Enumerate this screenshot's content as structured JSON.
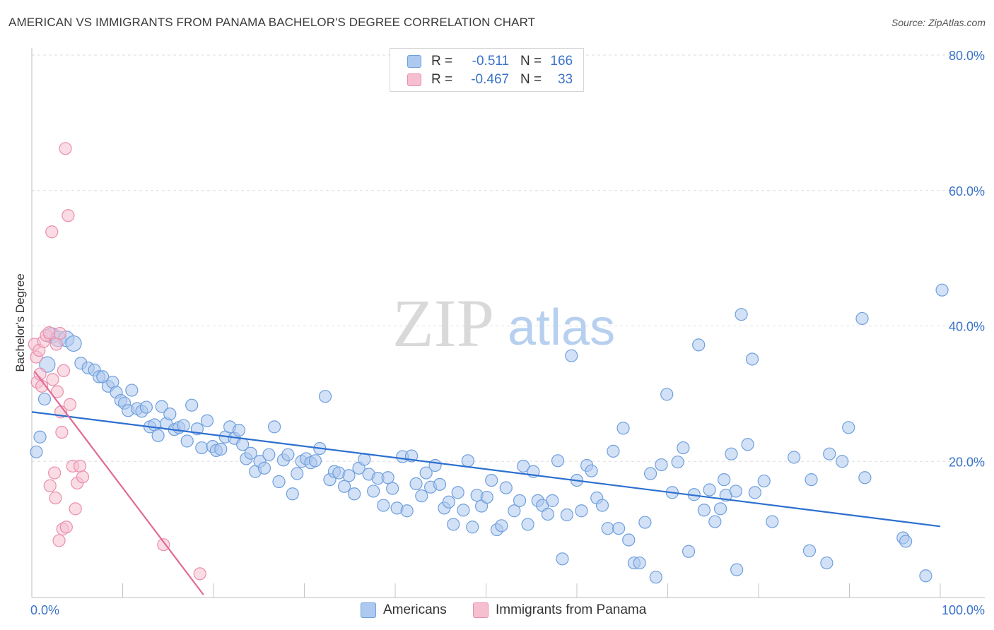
{
  "header": {
    "title": "AMERICAN VS IMMIGRANTS FROM PANAMA BACHELOR'S DEGREE CORRELATION CHART",
    "source": "Source: ZipAtlas.com"
  },
  "watermark": {
    "zip": "ZIP",
    "atlas": "atlas"
  },
  "legend": {
    "rows": [
      {
        "r_label": "R =",
        "r_value": "-0.511",
        "n_label": "N =",
        "n_value": "166"
      },
      {
        "r_label": "R =",
        "r_value": "-0.467",
        "n_label": "N =",
        "n_value": "33"
      }
    ]
  },
  "bottom_legend": {
    "americans": "Americans",
    "panama": "Immigrants from Panama"
  },
  "colors": {
    "blue_fill": "#adc9ef",
    "blue_stroke": "#6f9fdd",
    "blue_line": "#2c6fd0",
    "pink_fill": "#f6bfd0",
    "pink_stroke": "#ea8eab",
    "pink_line": "#e06a97",
    "tick_label": "#3a73c8",
    "grid": "#dedede"
  },
  "chart_data": {
    "type": "scatter",
    "title": "AMERICAN VS IMMIGRANTS FROM PANAMA BACHELOR'S DEGREE CORRELATION CHART",
    "xlabel": "",
    "ylabel": "Bachelor's Degree",
    "xlim": [
      0,
      100
    ],
    "ylim": [
      0,
      80
    ],
    "x_tick_labels": [
      "0.0%",
      "100.0%"
    ],
    "y_ticks": [
      20,
      40,
      60,
      80
    ],
    "y_tick_labels": [
      "20.0%",
      "40.0%",
      "60.0%",
      "80.0%"
    ],
    "series": [
      {
        "name": "Americans",
        "r": -0.511,
        "n": 166,
        "trend": {
          "x": [
            0,
            100
          ],
          "y": [
            27.3,
            10.4
          ]
        },
        "points": [
          [
            0.5,
            21.4
          ],
          [
            0.9,
            23.6
          ],
          [
            1.4,
            29.2
          ],
          [
            1.7,
            34.3
          ],
          [
            2.2,
            38.6
          ],
          [
            2.9,
            38.1
          ],
          [
            3.8,
            38.1
          ],
          [
            4.6,
            37.4
          ],
          [
            5.4,
            34.5
          ],
          [
            6.2,
            33.8
          ],
          [
            6.9,
            33.5
          ],
          [
            7.4,
            32.5
          ],
          [
            7.8,
            32.5
          ],
          [
            8.4,
            31.1
          ],
          [
            8.9,
            31.7
          ],
          [
            9.3,
            30.2
          ],
          [
            9.8,
            29.0
          ],
          [
            10.2,
            28.6
          ],
          [
            10.6,
            27.5
          ],
          [
            11.0,
            30.5
          ],
          [
            11.6,
            27.8
          ],
          [
            12.1,
            27.4
          ],
          [
            12.6,
            28.0
          ],
          [
            13.0,
            25.1
          ],
          [
            13.5,
            25.4
          ],
          [
            13.9,
            23.8
          ],
          [
            14.3,
            28.1
          ],
          [
            14.8,
            25.6
          ],
          [
            15.2,
            27.0
          ],
          [
            15.7,
            24.7
          ],
          [
            16.2,
            25.0
          ],
          [
            16.7,
            25.3
          ],
          [
            17.1,
            23.0
          ],
          [
            17.6,
            28.3
          ],
          [
            18.2,
            24.8
          ],
          [
            18.7,
            22.0
          ],
          [
            19.3,
            26.0
          ],
          [
            19.9,
            22.2
          ],
          [
            20.3,
            21.6
          ],
          [
            20.8,
            21.8
          ],
          [
            21.3,
            23.6
          ],
          [
            21.8,
            25.1
          ],
          [
            22.3,
            23.4
          ],
          [
            22.8,
            24.6
          ],
          [
            23.2,
            22.5
          ],
          [
            23.6,
            20.4
          ],
          [
            24.1,
            21.2
          ],
          [
            24.6,
            18.5
          ],
          [
            25.1,
            20.0
          ],
          [
            25.6,
            19.0
          ],
          [
            26.1,
            21.0
          ],
          [
            26.7,
            25.1
          ],
          [
            27.2,
            17.0
          ],
          [
            27.7,
            20.2
          ],
          [
            28.2,
            21.0
          ],
          [
            28.7,
            15.2
          ],
          [
            29.2,
            18.2
          ],
          [
            29.7,
            20.0
          ],
          [
            30.2,
            20.4
          ],
          [
            30.7,
            19.8
          ],
          [
            31.2,
            20.1
          ],
          [
            31.7,
            21.9
          ],
          [
            32.3,
            29.6
          ],
          [
            32.8,
            17.3
          ],
          [
            33.3,
            18.5
          ],
          [
            33.8,
            18.3
          ],
          [
            34.4,
            16.3
          ],
          [
            34.9,
            17.9
          ],
          [
            35.5,
            15.2
          ],
          [
            36.0,
            19.0
          ],
          [
            36.6,
            20.3
          ],
          [
            37.1,
            18.1
          ],
          [
            37.6,
            15.6
          ],
          [
            38.1,
            17.5
          ],
          [
            38.7,
            13.5
          ],
          [
            39.2,
            17.6
          ],
          [
            39.7,
            16.0
          ],
          [
            40.2,
            13.1
          ],
          [
            40.8,
            20.7
          ],
          [
            41.3,
            12.7
          ],
          [
            41.8,
            20.8
          ],
          [
            42.3,
            16.7
          ],
          [
            42.9,
            14.9
          ],
          [
            43.4,
            18.3
          ],
          [
            43.9,
            16.2
          ],
          [
            44.4,
            19.4
          ],
          [
            44.9,
            16.6
          ],
          [
            45.4,
            13.1
          ],
          [
            45.9,
            14.0
          ],
          [
            46.4,
            10.7
          ],
          [
            46.9,
            15.4
          ],
          [
            47.5,
            12.8
          ],
          [
            48.0,
            20.1
          ],
          [
            48.5,
            10.3
          ],
          [
            49.0,
            15.0
          ],
          [
            49.5,
            13.4
          ],
          [
            50.1,
            14.7
          ],
          [
            50.6,
            17.2
          ],
          [
            51.2,
            9.9
          ],
          [
            51.7,
            10.5
          ],
          [
            52.2,
            16.1
          ],
          [
            53.1,
            12.7
          ],
          [
            53.7,
            14.2
          ],
          [
            54.1,
            19.3
          ],
          [
            54.6,
            10.7
          ],
          [
            55.2,
            18.5
          ],
          [
            55.7,
            14.2
          ],
          [
            56.2,
            13.5
          ],
          [
            56.8,
            12.2
          ],
          [
            57.3,
            14.2
          ],
          [
            57.9,
            20.1
          ],
          [
            58.4,
            5.6
          ],
          [
            58.9,
            12.1
          ],
          [
            59.4,
            35.6
          ],
          [
            60.0,
            17.2
          ],
          [
            60.5,
            12.7
          ],
          [
            61.1,
            19.4
          ],
          [
            61.6,
            18.6
          ],
          [
            62.2,
            14.6
          ],
          [
            62.8,
            13.5
          ],
          [
            63.4,
            10.1
          ],
          [
            64.0,
            21.5
          ],
          [
            64.6,
            10.1
          ],
          [
            65.1,
            24.9
          ],
          [
            65.7,
            8.4
          ],
          [
            66.3,
            5.0
          ],
          [
            66.9,
            5.0
          ],
          [
            67.5,
            11.0
          ],
          [
            68.1,
            18.2
          ],
          [
            68.7,
            2.9
          ],
          [
            69.3,
            19.5
          ],
          [
            69.9,
            29.9
          ],
          [
            70.5,
            15.4
          ],
          [
            71.1,
            19.9
          ],
          [
            71.7,
            22.0
          ],
          [
            72.3,
            6.7
          ],
          [
            72.9,
            15.1
          ],
          [
            73.4,
            37.2
          ],
          [
            74.0,
            12.8
          ],
          [
            74.6,
            15.8
          ],
          [
            75.2,
            11.1
          ],
          [
            75.8,
            13.0
          ],
          [
            76.4,
            15.0
          ],
          [
            77.0,
            21.1
          ],
          [
            77.6,
            4.0
          ],
          [
            78.1,
            41.7
          ],
          [
            78.8,
            22.5
          ],
          [
            79.3,
            35.1
          ],
          [
            79.6,
            15.4
          ],
          [
            80.6,
            17.1
          ],
          [
            81.5,
            11.1
          ],
          [
            85.6,
            6.8
          ],
          [
            85.8,
            17.3
          ],
          [
            87.5,
            5.0
          ],
          [
            87.8,
            21.1
          ],
          [
            89.2,
            20.0
          ],
          [
            89.9,
            25.0
          ],
          [
            91.4,
            41.1
          ],
          [
            91.7,
            17.6
          ],
          [
            95.9,
            8.7
          ],
          [
            96.2,
            8.2
          ],
          [
            98.4,
            3.1
          ],
          [
            100.2,
            45.3
          ],
          [
            76.2,
            17.3
          ],
          [
            83.9,
            20.6
          ],
          [
            77.5,
            15.6
          ]
        ]
      },
      {
        "name": "Immigrants from Panama",
        "r": -0.467,
        "n": 33,
        "trend": {
          "x": [
            0.3,
            18.9
          ],
          "y": [
            33.3,
            0.3
          ]
        },
        "points": [
          [
            0.3,
            37.3
          ],
          [
            0.5,
            35.4
          ],
          [
            0.6,
            31.7
          ],
          [
            0.8,
            36.4
          ],
          [
            0.9,
            32.9
          ],
          [
            1.1,
            31.1
          ],
          [
            1.3,
            37.7
          ],
          [
            1.6,
            38.6
          ],
          [
            1.9,
            39.0
          ],
          [
            2.0,
            16.4
          ],
          [
            2.2,
            53.9
          ],
          [
            2.5,
            18.3
          ],
          [
            2.6,
            14.6
          ],
          [
            2.8,
            30.3
          ],
          [
            3.0,
            8.3
          ],
          [
            3.1,
            38.9
          ],
          [
            3.2,
            27.3
          ],
          [
            3.3,
            24.3
          ],
          [
            3.4,
            10.0
          ],
          [
            3.5,
            33.4
          ],
          [
            3.7,
            66.2
          ],
          [
            3.8,
            10.3
          ],
          [
            4.0,
            56.3
          ],
          [
            4.2,
            28.4
          ],
          [
            4.5,
            19.3
          ],
          [
            4.8,
            13.0
          ],
          [
            5.0,
            16.8
          ],
          [
            5.3,
            19.3
          ],
          [
            5.6,
            17.7
          ],
          [
            14.5,
            7.7
          ],
          [
            18.5,
            3.4
          ],
          [
            2.7,
            37.3
          ],
          [
            2.3,
            32.1
          ]
        ]
      }
    ]
  }
}
